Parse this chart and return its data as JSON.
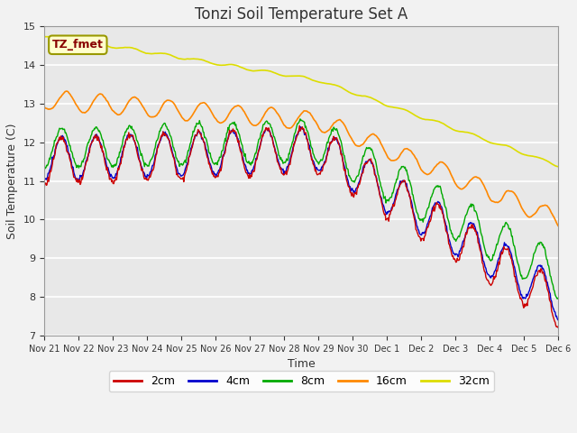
{
  "title": "Tonzi Soil Temperature Set A",
  "xlabel": "Time",
  "ylabel": "Soil Temperature (C)",
  "ylim": [
    7.0,
    15.0
  ],
  "yticks": [
    7.0,
    8.0,
    9.0,
    10.0,
    11.0,
    12.0,
    13.0,
    14.0,
    15.0
  ],
  "xtick_labels": [
    "Nov 21",
    "Nov 22",
    "Nov 23",
    "Nov 24",
    "Nov 25",
    "Nov 26",
    "Nov 27",
    "Nov 28",
    "Nov 29",
    "Nov 30",
    "Dec 1",
    "Dec 2",
    "Dec 3",
    "Dec 4",
    "Dec 5",
    "Dec 6"
  ],
  "legend_label": "TZ_fmet",
  "legend_box_color": "#ffffcc",
  "legend_text_color": "#880000",
  "line_colors": {
    "2cm": "#cc0000",
    "4cm": "#0000cc",
    "8cm": "#00aa00",
    "16cm": "#ff8800",
    "32cm": "#dddd00"
  },
  "line_labels": [
    "2cm",
    "4cm",
    "8cm",
    "16cm",
    "32cm"
  ],
  "background_color": "#e8e8e8",
  "grid_color": "#ffffff",
  "title_fontsize": 12,
  "axis_fontsize": 9,
  "legend_fontsize": 9
}
